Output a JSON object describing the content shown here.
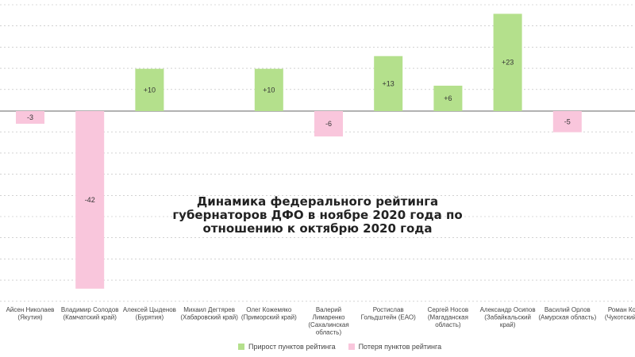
{
  "chart_data": {
    "type": "bar",
    "title_lines": [
      "Динамика федерального рейтинга",
      "губернаторов ДФО в ноябре 2020 года по",
      "отношению к октябрю 2020 года"
    ],
    "categories": [
      [
        "Айсен Николаев",
        "(Якутия)"
      ],
      [
        "Владимир Солодов",
        "(Камчатский край)"
      ],
      [
        "Алексей Цыденов",
        "(Бурятия)"
      ],
      [
        "Михаил Дегтярев",
        "(Хабаровский край)"
      ],
      [
        "Олег Кожемяко",
        "(Приморский край)"
      ],
      [
        "Валерий",
        "Лимаренко",
        "(Сахалинская",
        "область)"
      ],
      [
        "Ростислав",
        "Гольдштейн (ЕАО)"
      ],
      [
        "Сергей Носов",
        "(Магаданская",
        "область)"
      ],
      [
        "Александр Осипов",
        "(Забайкальский",
        "край)"
      ],
      [
        "Василий Орлов",
        "(Амурская область)"
      ],
      [
        "Роман Копин",
        "(Чукотский АО)"
      ]
    ],
    "values": [
      -3,
      -42,
      10,
      0,
      10,
      -6,
      13,
      6,
      23,
      -5,
      0
    ],
    "labels": [
      "-3",
      "-42",
      "+10",
      "",
      "+10",
      "-6",
      "+13",
      "+6",
      "+23",
      "-5",
      ""
    ],
    "ylim": [
      -43,
      23
    ],
    "grid": true,
    "legend": [
      {
        "name": "Прирост пунктов рейтинга",
        "color": "#b4e08c"
      },
      {
        "name": "Потеря пунктов рейтинга",
        "color": "#f9c6dc"
      }
    ],
    "legend_position": "bottom",
    "colors": {
      "positive": "#b4e08c",
      "negative": "#f9c6dc",
      "grid": "#b8b8b8",
      "zero_line": "#666666"
    }
  }
}
